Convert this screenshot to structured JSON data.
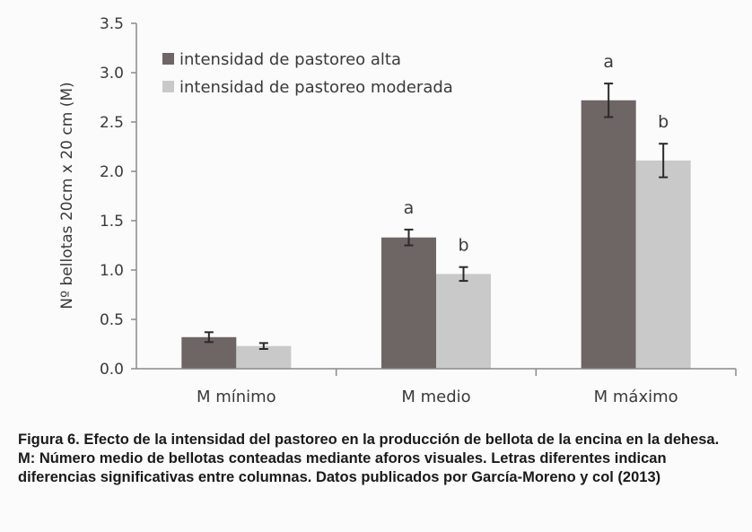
{
  "chart_data": {
    "type": "bar",
    "ylabel": "Nº bellotas 20cm x 20 cm (M)",
    "ylim": [
      0,
      3.5
    ],
    "yticks": [
      "0.0",
      "0.5",
      "1.0",
      "1.5",
      "2.0",
      "2.5",
      "3.0",
      "3.5"
    ],
    "categories": [
      "M mínimo",
      "M medio",
      "M máximo"
    ],
    "legend_position": "top-left",
    "grid": false,
    "series": [
      {
        "name": "intensidad de pastoreo alta",
        "color": "#6e6565",
        "values": [
          0.32,
          1.33,
          2.72
        ],
        "errors": [
          0.05,
          0.08,
          0.17
        ],
        "letters": [
          "",
          "a",
          "a"
        ]
      },
      {
        "name": "intensidad de pastoreo moderada",
        "color": "#c9c9c9",
        "values": [
          0.23,
          0.96,
          2.11
        ],
        "errors": [
          0.03,
          0.07,
          0.17
        ],
        "letters": [
          "",
          "b",
          "b"
        ]
      }
    ]
  },
  "caption": "Figura 6. Efecto de la intensidad del pastoreo en la producción de bellota de la encina en la dehesa. M: Número medio de bellotas conteadas mediante aforos visuales. Letras diferentes indican diferencias significativas entre columnas. Datos publicados por García-Moreno y col (2013)"
}
